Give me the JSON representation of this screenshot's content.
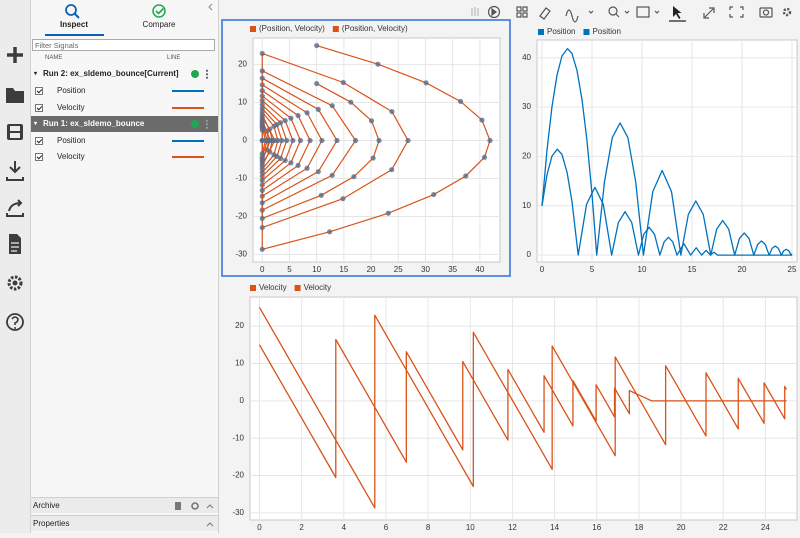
{
  "sidebar": {
    "tabs": [
      "Inspect",
      "Compare"
    ],
    "filter_placeholder": "Filter Signals",
    "columns": [
      "NAME",
      "LINE"
    ],
    "runs": [
      {
        "label": "Run 2: ex_sldemo_bounce[Current]",
        "signals": [
          {
            "name": "Position",
            "color": "#0072bd"
          },
          {
            "name": "Velocity",
            "color": "#d95319"
          }
        ]
      },
      {
        "label": "Run 1: ex_sldemo_bounce",
        "signals": [
          {
            "name": "Position",
            "color": "#0072bd"
          },
          {
            "name": "Velocity",
            "color": "#d95319"
          }
        ]
      }
    ],
    "sections": [
      "Archive",
      "Properties"
    ]
  },
  "chart_data": [
    {
      "type": "scatter",
      "marker_color": "#5b6b87",
      "grid": true,
      "series": [
        {
          "name": "(Position, Velocity)",
          "color": "#d95319"
        },
        {
          "name": "(Position, Velocity)",
          "color": "#d95319"
        }
      ],
      "xlim": [
        -1.7,
        43.7
      ],
      "xticks": [
        0,
        5,
        10,
        15,
        20,
        25,
        30,
        35,
        40
      ],
      "ylim": [
        -32,
        27
      ],
      "yticks": [
        -30,
        -20,
        -10,
        0,
        10,
        20
      ]
    },
    {
      "type": "line",
      "grid": true,
      "series": [
        {
          "name": "Position",
          "color": "#0072bd",
          "x": [
            0,
            0.5,
            1,
            1.5,
            2,
            2.55,
            3,
            3.5,
            4,
            4.5,
            5,
            5.47,
            5.47,
            6.25,
            7.03,
            7.81,
            8.59,
            9.37,
            10.145,
            10.145,
            11.08,
            12.015,
            12.95,
            13.885,
            13.885,
            14.635,
            15.38,
            16.125,
            16.875,
            16.875,
            17.47,
            18.07,
            18.67,
            19.268,
            19.268,
            19.75,
            20.225,
            20.7,
            21.182,
            21.182,
            21.565,
            21.948,
            22.33,
            22.713,
            22.713,
            23.02,
            23.325,
            23.63,
            23.938,
            23.938,
            24.18,
            24.428,
            24.67,
            24.918,
            24.918,
            25
          ],
          "values": [
            10,
            21.27,
            30.1,
            36.46,
            40.38,
            41.86,
            40.85,
            37.41,
            31.52,
            23.17,
            12.38,
            0,
            0,
            14.9,
            23.83,
            26.8,
            23.8,
            14.83,
            0,
            0,
            12.86,
            17.15,
            12.86,
            0,
            0,
            8.24,
            10.97,
            8.24,
            0,
            0,
            5.27,
            7.02,
            5.27,
            0,
            0,
            3.37,
            4.49,
            3.37,
            0,
            0,
            2.15,
            2.87,
            2.15,
            0,
            0,
            1.38,
            1.84,
            1.38,
            0,
            0,
            0.88,
            1.18,
            0.88,
            0,
            0,
            0.28
          ]
        },
        {
          "name": "Position",
          "color": "#0072bd",
          "x": [
            0,
            0.5,
            1,
            1.53,
            2,
            2.5,
            3,
            3.62,
            3.62,
            4.457,
            5.294,
            6.13,
            6.967,
            6.967,
            7.636,
            8.305,
            8.975,
            9.644,
            9.644,
            10.18,
            10.715,
            11.25,
            11.786,
            11.786,
            12.215,
            12.643,
            13.07,
            13.5,
            13.5,
            14.186,
            14.871,
            14.871,
            15.42,
            15.968,
            15.968,
            16.407,
            16.845,
            16.845,
            17.196,
            17.547,
            17.547,
            18.6,
            25
          ],
          "values": [
            10,
            16.27,
            20.09,
            21.47,
            20.38,
            16.84,
            10.85,
            0,
            0,
            10.3,
            13.74,
            10.3,
            0,
            0,
            6.59,
            8.79,
            6.59,
            0,
            0,
            4.22,
            5.63,
            4.22,
            0,
            0,
            2.7,
            3.6,
            2.7,
            0,
            0,
            2.3,
            0,
            0,
            1.48,
            0,
            0,
            0.94,
            0,
            0,
            0.6,
            0,
            0,
            0,
            0
          ]
        }
      ],
      "xlim": [
        -0.5,
        25.5
      ],
      "xticks": [
        0,
        5,
        10,
        15,
        20,
        25
      ],
      "ylim": [
        -1.4,
        43.6
      ],
      "yticks": [
        0,
        10,
        20,
        30,
        40
      ]
    },
    {
      "type": "line",
      "grid": true,
      "series": [
        {
          "name": "Velocity",
          "color": "#d95319",
          "x": [
            0,
            0.5,
            1,
            1.5,
            2,
            2.55,
            3,
            3.5,
            4,
            4.5,
            5,
            5.47,
            5.47,
            6.25,
            7.03,
            7.81,
            8.59,
            9.37,
            10.145,
            10.145,
            11.08,
            12.015,
            12.95,
            13.885,
            13.885,
            14.635,
            15.38,
            16.125,
            16.875,
            16.875,
            17.47,
            18.07,
            18.67,
            19.268,
            19.268,
            19.75,
            20.225,
            20.7,
            21.182,
            21.182,
            21.565,
            21.948,
            22.33,
            22.713,
            22.713,
            23.02,
            23.325,
            23.63,
            23.938,
            23.938,
            24.18,
            24.428,
            24.67,
            24.918,
            24.918,
            25
          ],
          "values": [
            25,
            20.1,
            15.19,
            10.29,
            5.38,
            0,
            -4.43,
            -9.34,
            -14.24,
            -19.15,
            -24.05,
            -28.66,
            22.93,
            15.28,
            7.63,
            0,
            -7.68,
            -15.33,
            -22.93,
            18.34,
            9.17,
            0,
            -9.17,
            -18.34,
            14.67,
            7.31,
            0,
            -7.31,
            -14.67,
            11.74,
            5.87,
            0,
            -5.87,
            -11.74,
            9.39,
            4.7,
            0,
            -4.7,
            -9.39,
            7.51,
            3.76,
            0,
            -3.76,
            -7.51,
            6.01,
            3,
            0,
            -3,
            -6.01,
            4.81,
            2.4,
            0,
            -2.4,
            -4.81,
            3.85,
            3.05
          ]
        },
        {
          "name": "Velocity",
          "color": "#d95319",
          "x": [
            0,
            0.5,
            1,
            1.53,
            2,
            2.5,
            3,
            3.62,
            3.62,
            4.457,
            5.294,
            6.13,
            6.967,
            6.967,
            7.636,
            8.305,
            8.975,
            9.644,
            9.644,
            10.18,
            10.715,
            11.25,
            11.786,
            11.786,
            12.215,
            12.643,
            13.07,
            13.5,
            13.5,
            14.186,
            14.871,
            14.871,
            15.42,
            15.968,
            15.968,
            16.407,
            16.845,
            16.845,
            17.196,
            17.547,
            17.547,
            18.6,
            25
          ],
          "values": [
            15,
            10.1,
            5.19,
            0,
            -4.62,
            -9.53,
            -14.43,
            -20.52,
            16.42,
            8.21,
            0,
            -8.21,
            -16.42,
            13.13,
            6.57,
            0,
            -6.57,
            -13.13,
            10.51,
            5.25,
            0,
            -5.25,
            -10.51,
            8.41,
            4.2,
            0,
            -4.2,
            -8.41,
            6.72,
            0,
            -6.72,
            5.38,
            0,
            -5.38,
            4.3,
            0,
            -4.3,
            3.44,
            0,
            -3.44,
            2.75,
            0,
            0
          ]
        }
      ],
      "xlim": [
        -0.45,
        25.5
      ],
      "xticks": [
        0,
        2,
        4,
        6,
        8,
        10,
        12,
        14,
        16,
        18,
        20,
        22,
        24
      ],
      "ylim": [
        -31.9,
        27.8
      ],
      "yticks": [
        -30,
        -20,
        -10,
        0,
        10,
        20
      ]
    }
  ]
}
